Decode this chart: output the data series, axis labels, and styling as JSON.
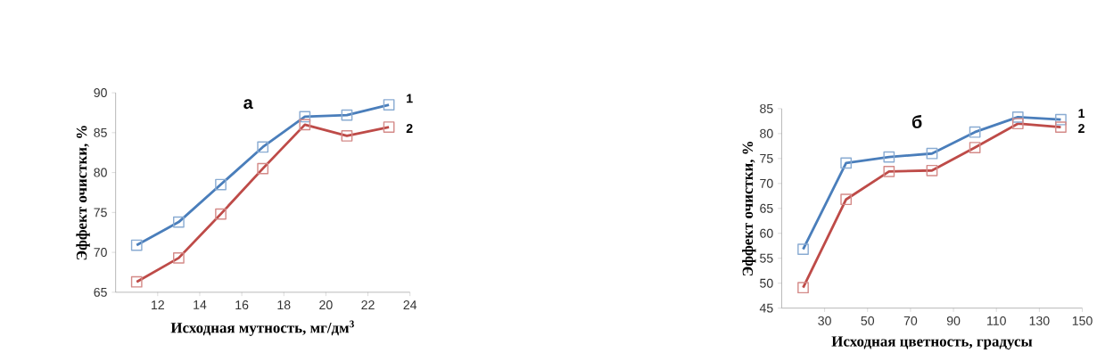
{
  "chart_data": [
    {
      "type": "line",
      "title": "а",
      "xlabel": "Исходная мутность, мг/дм$^{3}$",
      "ylabel": "Эффект очистки, %",
      "xlim": [
        10,
        24
      ],
      "xticks": [
        12,
        14,
        16,
        18,
        20,
        22,
        24
      ],
      "ylim": [
        65,
        90
      ],
      "yticks": [
        65,
        70,
        75,
        80,
        85,
        90
      ],
      "grid": false,
      "legend": false,
      "marker": "square",
      "line_style": "solid",
      "x": [
        11,
        13,
        15,
        17,
        19,
        21,
        23
      ],
      "series": [
        {
          "name": "1",
          "color": "#4a7ebb",
          "values": [
            70.9,
            73.8,
            78.5,
            83.2,
            87.0,
            87.2,
            88.5
          ]
        },
        {
          "name": "2",
          "color": "#be4b48",
          "values": [
            66.3,
            69.3,
            74.8,
            80.5,
            86.0,
            84.6,
            85.7
          ]
        }
      ]
    },
    {
      "type": "line",
      "title": "б",
      "xlabel": "Исходная цветность, градусы",
      "ylabel": "Эффект очистки, %",
      "xlim": [
        10,
        150
      ],
      "xticks": [
        30,
        50,
        70,
        90,
        110,
        130,
        150
      ],
      "ylim": [
        45,
        85
      ],
      "yticks": [
        45,
        50,
        55,
        60,
        65,
        70,
        75,
        80,
        85
      ],
      "grid": false,
      "legend": false,
      "marker": "square",
      "line_style": "solid",
      "x": [
        20,
        40,
        60,
        80,
        100,
        120,
        140
      ],
      "series": [
        {
          "name": "1",
          "color": "#4a7ebb",
          "values": [
            56.8,
            74.1,
            75.3,
            76.0,
            80.3,
            83.3,
            82.8
          ]
        },
        {
          "name": "2",
          "color": "#be4b48",
          "values": [
            49.1,
            66.8,
            72.4,
            72.6,
            77.2,
            82.0,
            81.3
          ]
        }
      ]
    }
  ]
}
